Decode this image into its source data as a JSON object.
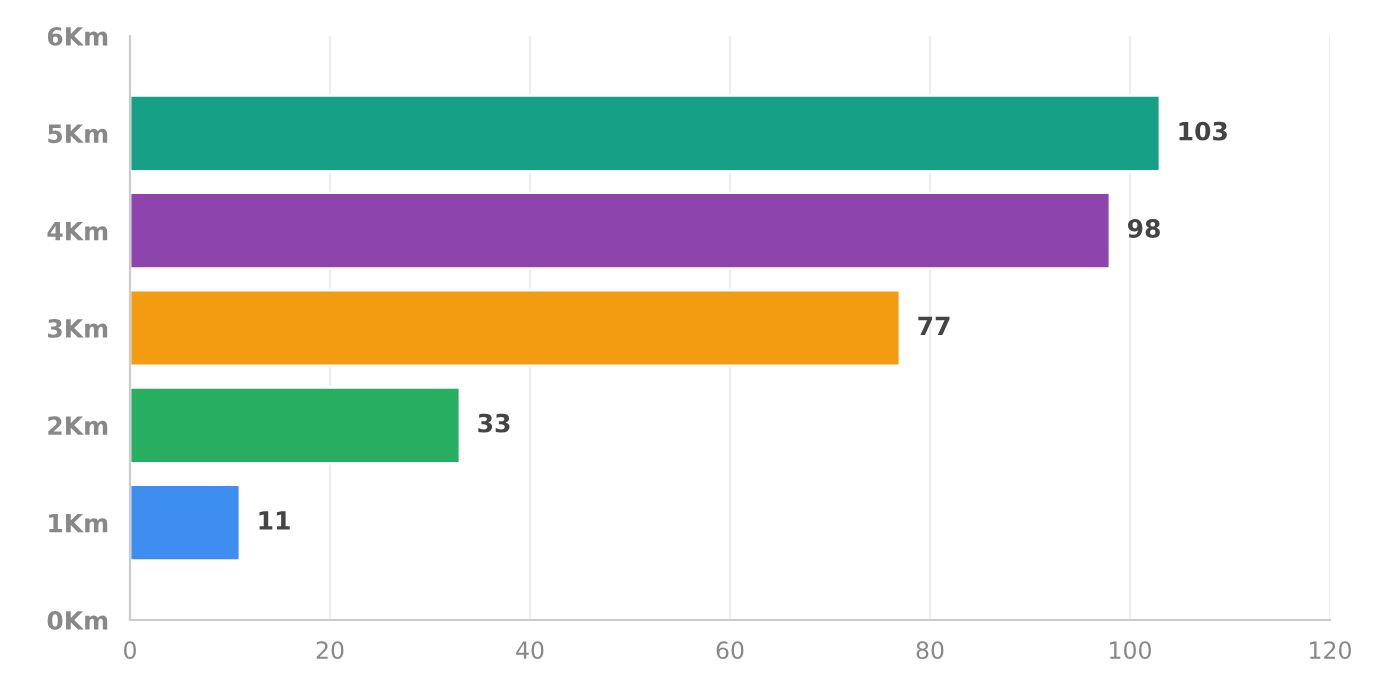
{
  "chart_data": {
    "type": "bar",
    "orientation": "horizontal",
    "categories": [
      "6Km",
      "5Km",
      "4Km",
      "3Km",
      "2Km",
      "1Km",
      "0Km"
    ],
    "values": [
      null,
      103,
      98,
      77,
      33,
      11,
      null
    ],
    "colors": [
      "#888888",
      "#16a085",
      "#8e44ad",
      "#f39c12",
      "#27ae60",
      "#3e8ef0",
      "#888888"
    ],
    "xlim": [
      0,
      120
    ],
    "xticks": [
      0,
      20,
      40,
      60,
      80,
      100,
      120
    ],
    "grid": "x",
    "data_labels": true
  }
}
